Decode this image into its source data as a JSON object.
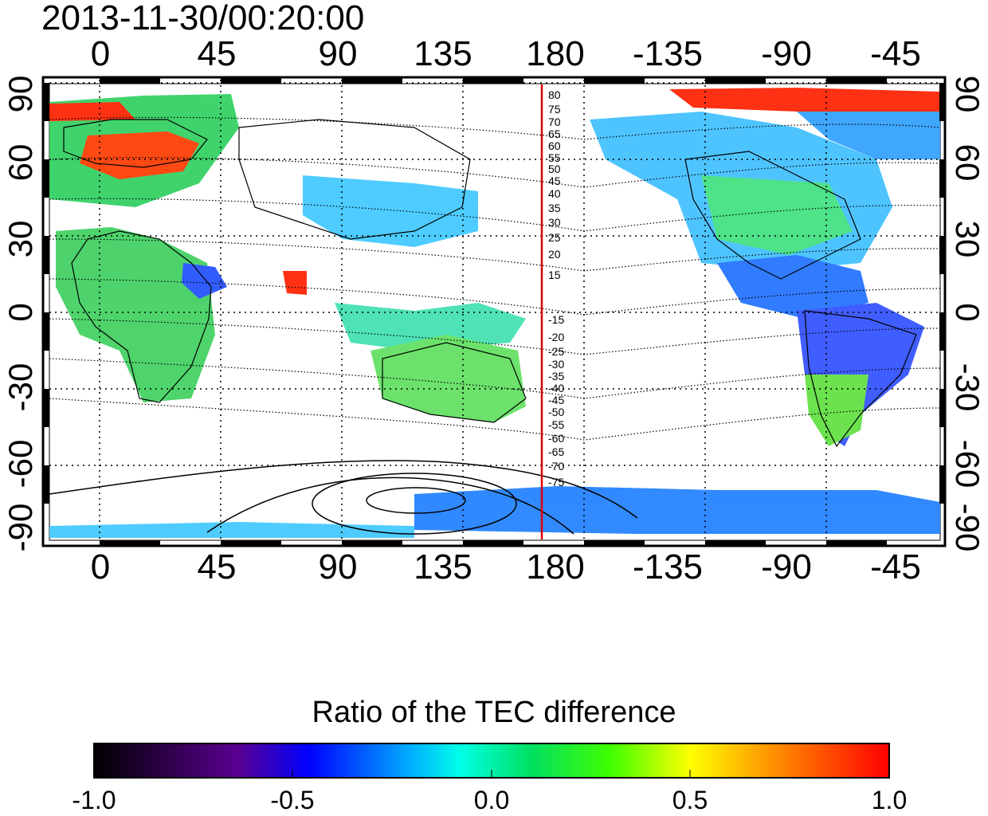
{
  "title": "2013-11-30/00:20:00",
  "map": {
    "lon_ticks": [
      "0",
      "45",
      "90",
      "135",
      "180",
      "-135",
      "-90",
      "-45"
    ],
    "lat_ticks": [
      "90",
      "60",
      "30",
      "0",
      "-30",
      "-60",
      "-90"
    ],
    "meridian_marker_color": "#e00000",
    "contour_labels_north": [
      "80",
      "75",
      "70",
      "65",
      "60",
      "55",
      "50",
      "45",
      "40",
      "35",
      "30",
      "25",
      "20",
      "15"
    ],
    "contour_labels_south": [
      "-15",
      "-20",
      "-25",
      "-30",
      "-35",
      "-40",
      "-45",
      "-50",
      "-55",
      "-60",
      "-65",
      "-70",
      "-75"
    ]
  },
  "colorbar": {
    "title": "Ratio of the TEC difference",
    "ticks": [
      "-1.0",
      "-0.5",
      "0.0",
      "0.5",
      "1.0"
    ],
    "min": -1.0,
    "max": 1.0,
    "colors": [
      "#000000",
      "#5a0090",
      "#0000ff",
      "#00e0ff",
      "#00e000",
      "#ffff00",
      "#ff8000",
      "#ff0000"
    ]
  }
}
